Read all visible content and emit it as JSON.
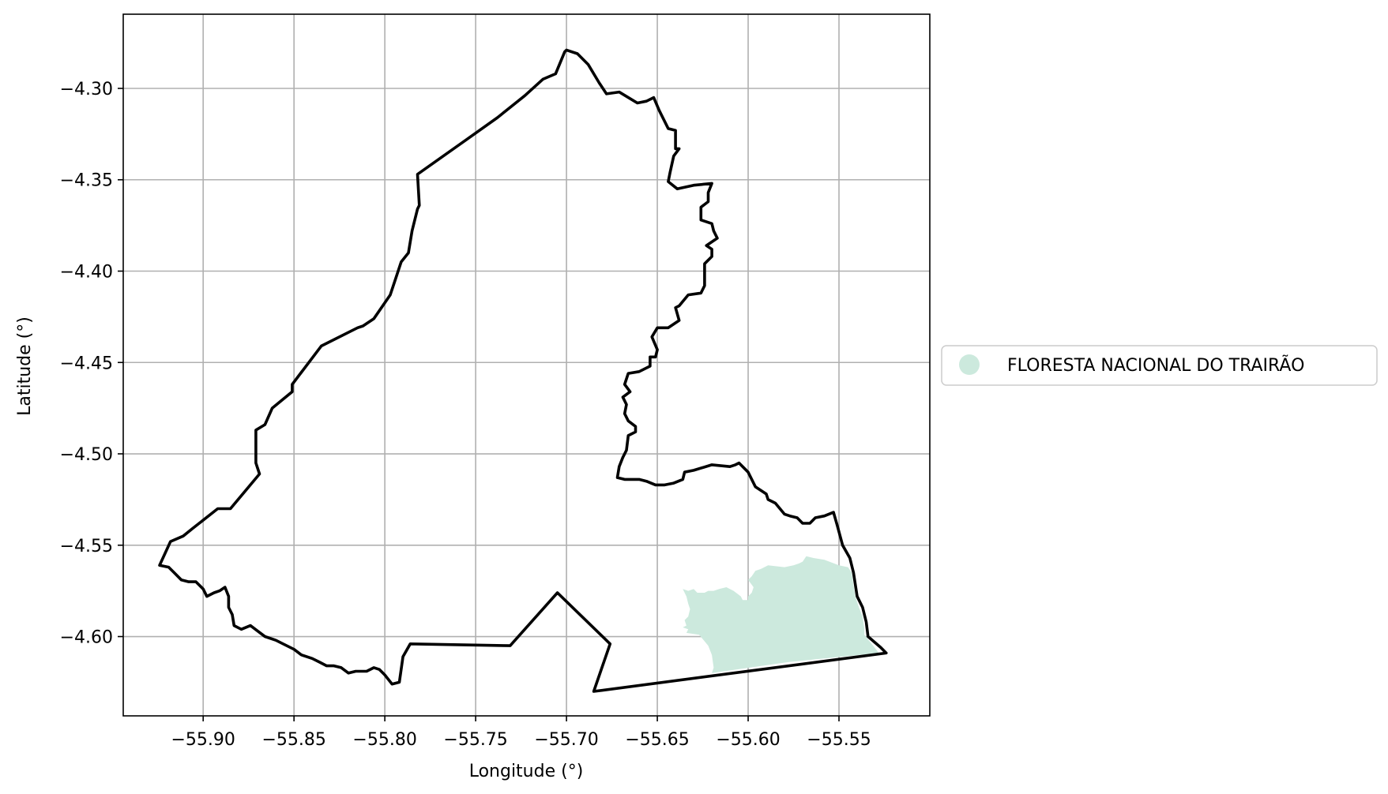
{
  "chart_data": {
    "type": "map",
    "xlabel": "Longitude (°)",
    "ylabel": "Latitude (°)",
    "xlim": [
      -55.944,
      -55.5
    ],
    "ylim": [
      -4.6434,
      -4.2594
    ],
    "xticks": [
      -55.9,
      -55.85,
      -55.8,
      -55.75,
      -55.7,
      -55.65,
      -55.6,
      -55.55
    ],
    "xtick_labels": [
      "−55.90",
      "−55.85",
      "−55.80",
      "−55.75",
      "−55.70",
      "−55.65",
      "−55.60",
      "−55.55"
    ],
    "yticks": [
      -4.3,
      -4.35,
      -4.4,
      -4.45,
      -4.5,
      -4.55,
      -4.6
    ],
    "ytick_labels": [
      "−4.30",
      "−4.35",
      "−4.40",
      "−4.45",
      "−4.50",
      "−4.55",
      "−4.60"
    ],
    "grid": true,
    "legend_position": "right-outside",
    "layers": [
      {
        "name": "boundary",
        "style": "outline",
        "color": "#000000",
        "coords": [
          [
            -55.7,
            -4.279
          ],
          [
            -55.694,
            -4.281
          ],
          [
            -55.688,
            -4.287
          ],
          [
            -55.682,
            -4.297
          ],
          [
            -55.678,
            -4.303
          ],
          [
            -55.671,
            -4.302
          ],
          [
            -55.661,
            -4.308
          ],
          [
            -55.656,
            -4.307
          ],
          [
            -55.652,
            -4.305
          ],
          [
            -55.649,
            -4.312
          ],
          [
            -55.644,
            -4.322
          ],
          [
            -55.64,
            -4.323
          ],
          [
            -55.64,
            -4.333
          ],
          [
            -55.638,
            -4.333
          ],
          [
            -55.641,
            -4.337
          ],
          [
            -55.643,
            -4.346
          ],
          [
            -55.644,
            -4.351
          ],
          [
            -55.639,
            -4.355
          ],
          [
            -55.63,
            -4.353
          ],
          [
            -55.62,
            -4.352
          ],
          [
            -55.622,
            -4.357
          ],
          [
            -55.622,
            -4.362
          ],
          [
            -55.626,
            -4.365
          ],
          [
            -55.626,
            -4.372
          ],
          [
            -55.62,
            -4.374
          ],
          [
            -55.619,
            -4.378
          ],
          [
            -55.617,
            -4.382
          ],
          [
            -55.623,
            -4.386
          ],
          [
            -55.62,
            -4.388
          ],
          [
            -55.62,
            -4.392
          ],
          [
            -55.624,
            -4.396
          ],
          [
            -55.624,
            -4.408
          ],
          [
            -55.626,
            -4.412
          ],
          [
            -55.633,
            -4.413
          ],
          [
            -55.638,
            -4.419
          ],
          [
            -55.64,
            -4.42
          ],
          [
            -55.638,
            -4.427
          ],
          [
            -55.644,
            -4.431
          ],
          [
            -55.65,
            -4.431
          ],
          [
            -55.653,
            -4.436
          ],
          [
            -55.65,
            -4.443
          ],
          [
            -55.651,
            -4.447
          ],
          [
            -55.654,
            -4.447
          ],
          [
            -55.654,
            -4.452
          ],
          [
            -55.66,
            -4.455
          ],
          [
            -55.666,
            -4.456
          ],
          [
            -55.668,
            -4.462
          ],
          [
            -55.665,
            -4.466
          ],
          [
            -55.669,
            -4.469
          ],
          [
            -55.667,
            -4.473
          ],
          [
            -55.668,
            -4.478
          ],
          [
            -55.666,
            -4.482
          ],
          [
            -55.662,
            -4.485
          ],
          [
            -55.662,
            -4.488
          ],
          [
            -55.666,
            -4.49
          ],
          [
            -55.667,
            -4.498
          ],
          [
            -55.669,
            -4.502
          ],
          [
            -55.671,
            -4.507
          ],
          [
            -55.672,
            -4.513
          ],
          [
            -55.668,
            -4.514
          ],
          [
            -55.66,
            -4.514
          ],
          [
            -55.656,
            -4.515
          ],
          [
            -55.651,
            -4.517
          ],
          [
            -55.646,
            -4.517
          ],
          [
            -55.641,
            -4.516
          ],
          [
            -55.636,
            -4.514
          ],
          [
            -55.635,
            -4.51
          ],
          [
            -55.63,
            -4.509
          ],
          [
            -55.62,
            -4.506
          ],
          [
            -55.61,
            -4.507
          ],
          [
            -55.607,
            -4.506
          ],
          [
            -55.605,
            -4.505
          ],
          [
            -55.6,
            -4.51
          ],
          [
            -55.596,
            -4.518
          ],
          [
            -55.59,
            -4.522
          ],
          [
            -55.589,
            -4.525
          ],
          [
            -55.585,
            -4.527
          ],
          [
            -55.58,
            -4.533
          ],
          [
            -55.577,
            -4.534
          ],
          [
            -55.573,
            -4.535
          ],
          [
            -55.57,
            -4.538
          ],
          [
            -55.566,
            -4.538
          ],
          [
            -55.563,
            -4.535
          ],
          [
            -55.558,
            -4.534
          ],
          [
            -55.553,
            -4.532
          ],
          [
            -55.551,
            -4.539
          ],
          [
            -55.548,
            -4.55
          ],
          [
            -55.544,
            -4.557
          ],
          [
            -55.542,
            -4.565
          ],
          [
            -55.54,
            -4.578
          ],
          [
            -55.537,
            -4.584
          ],
          [
            -55.535,
            -4.592
          ],
          [
            -55.534,
            -4.6
          ],
          [
            -55.527,
            -4.606
          ],
          [
            -55.524,
            -4.609
          ],
          [
            -55.685,
            -4.63
          ],
          [
            -55.676,
            -4.604
          ],
          [
            -55.705,
            -4.576
          ],
          [
            -55.731,
            -4.605
          ],
          [
            -55.786,
            -4.604
          ],
          [
            -55.79,
            -4.611
          ],
          [
            -55.792,
            -4.625
          ],
          [
            -55.796,
            -4.626
          ],
          [
            -55.8,
            -4.621
          ],
          [
            -55.803,
            -4.618
          ],
          [
            -55.806,
            -4.617
          ],
          [
            -55.81,
            -4.619
          ],
          [
            -55.816,
            -4.619
          ],
          [
            -55.82,
            -4.62
          ],
          [
            -55.824,
            -4.617
          ],
          [
            -55.828,
            -4.616
          ],
          [
            -55.832,
            -4.616
          ],
          [
            -55.836,
            -4.614
          ],
          [
            -55.84,
            -4.612
          ],
          [
            -55.846,
            -4.61
          ],
          [
            -55.85,
            -4.607
          ],
          [
            -55.856,
            -4.604
          ],
          [
            -55.86,
            -4.602
          ],
          [
            -55.866,
            -4.6
          ],
          [
            -55.87,
            -4.597
          ],
          [
            -55.874,
            -4.594
          ],
          [
            -55.879,
            -4.596
          ],
          [
            -55.883,
            -4.594
          ],
          [
            -55.884,
            -4.588
          ],
          [
            -55.886,
            -4.584
          ],
          [
            -55.886,
            -4.578
          ],
          [
            -55.888,
            -4.573
          ],
          [
            -55.891,
            -4.575
          ],
          [
            -55.894,
            -4.576
          ],
          [
            -55.898,
            -4.578
          ],
          [
            -55.9,
            -4.574
          ],
          [
            -55.904,
            -4.57
          ],
          [
            -55.908,
            -4.57
          ],
          [
            -55.912,
            -4.569
          ],
          [
            -55.916,
            -4.565
          ],
          [
            -55.919,
            -4.562
          ],
          [
            -55.924,
            -4.561
          ],
          [
            -55.918,
            -4.548
          ],
          [
            -55.911,
            -4.545
          ],
          [
            -55.906,
            -4.541
          ],
          [
            -55.892,
            -4.53
          ],
          [
            -55.885,
            -4.53
          ],
          [
            -55.869,
            -4.511
          ],
          [
            -55.871,
            -4.505
          ],
          [
            -55.871,
            -4.487
          ],
          [
            -55.866,
            -4.484
          ],
          [
            -55.862,
            -4.475
          ],
          [
            -55.851,
            -4.466
          ],
          [
            -55.851,
            -4.462
          ],
          [
            -55.835,
            -4.441
          ],
          [
            -55.815,
            -4.431
          ],
          [
            -55.812,
            -4.43
          ],
          [
            -55.806,
            -4.426
          ],
          [
            -55.797,
            -4.413
          ],
          [
            -55.794,
            -4.404
          ],
          [
            -55.791,
            -4.395
          ],
          [
            -55.787,
            -4.39
          ],
          [
            -55.785,
            -4.378
          ],
          [
            -55.782,
            -4.366
          ],
          [
            -55.781,
            -4.364
          ],
          [
            -55.782,
            -4.347
          ],
          [
            -55.755,
            -4.328
          ],
          [
            -55.738,
            -4.316
          ],
          [
            -55.723,
            -4.304
          ],
          [
            -55.713,
            -4.295
          ],
          [
            -55.706,
            -4.292
          ],
          [
            -55.701,
            -4.28
          ],
          [
            -55.7,
            -4.279
          ]
        ]
      },
      {
        "name": "FLORESTA NACIONAL DO TRAIRÃO",
        "style": "fill",
        "color": "#cce9dd",
        "coords": [
          [
            -55.633,
            -4.596
          ],
          [
            -55.634,
            -4.598
          ],
          [
            -55.627,
            -4.599
          ],
          [
            -55.622,
            -4.605
          ],
          [
            -55.62,
            -4.61
          ],
          [
            -55.619,
            -4.617
          ],
          [
            -55.62,
            -4.62
          ],
          [
            -55.578,
            -4.614
          ],
          [
            -55.528,
            -4.609
          ],
          [
            -55.532,
            -4.604
          ],
          [
            -55.536,
            -4.599
          ],
          [
            -55.536,
            -4.596
          ],
          [
            -55.537,
            -4.589
          ],
          [
            -55.539,
            -4.584
          ],
          [
            -55.541,
            -4.578
          ],
          [
            -55.542,
            -4.572
          ],
          [
            -55.543,
            -4.565
          ],
          [
            -55.545,
            -4.562
          ],
          [
            -55.55,
            -4.561
          ],
          [
            -55.558,
            -4.558
          ],
          [
            -55.564,
            -4.557
          ],
          [
            -55.568,
            -4.556
          ],
          [
            -55.57,
            -4.559
          ],
          [
            -55.572,
            -4.56
          ],
          [
            -55.575,
            -4.561
          ],
          [
            -55.58,
            -4.562
          ],
          [
            -55.589,
            -4.561
          ],
          [
            -55.593,
            -4.563
          ],
          [
            -55.596,
            -4.564
          ],
          [
            -55.598,
            -4.567
          ],
          [
            -55.6,
            -4.569
          ],
          [
            -55.597,
            -4.573
          ],
          [
            -55.598,
            -4.576
          ],
          [
            -55.6,
            -4.578
          ],
          [
            -55.6,
            -4.58
          ],
          [
            -55.603,
            -4.58
          ],
          [
            -55.604,
            -4.578
          ],
          [
            -55.608,
            -4.575
          ],
          [
            -55.612,
            -4.573
          ],
          [
            -55.616,
            -4.574
          ],
          [
            -55.619,
            -4.575
          ],
          [
            -55.622,
            -4.575
          ],
          [
            -55.624,
            -4.576
          ],
          [
            -55.628,
            -4.576
          ],
          [
            -55.63,
            -4.574
          ],
          [
            -55.633,
            -4.575
          ],
          [
            -55.636,
            -4.574
          ],
          [
            -55.634,
            -4.578
          ],
          [
            -55.633,
            -4.582
          ],
          [
            -55.632,
            -4.585
          ],
          [
            -55.633,
            -4.589
          ],
          [
            -55.635,
            -4.591
          ],
          [
            -55.634,
            -4.594
          ],
          [
            -55.636,
            -4.595
          ],
          [
            -55.633,
            -4.596
          ]
        ]
      }
    ],
    "legend": [
      "FLORESTA NACIONAL DO TRAIRÃO"
    ]
  }
}
